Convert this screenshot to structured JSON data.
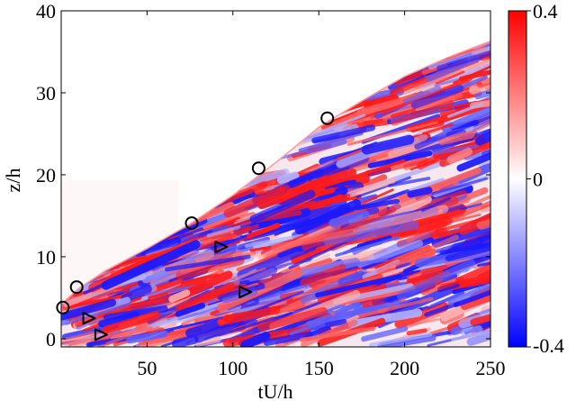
{
  "chart_data": {
    "type": "heatmap",
    "title": "",
    "xlabel": "tU/h",
    "ylabel": "z/h",
    "xlim": [
      0,
      250
    ],
    "ylim": [
      -1,
      40
    ],
    "xticks": [
      50,
      100,
      150,
      200,
      250
    ],
    "xtick_labels": [
      "50",
      "100",
      "150",
      "200",
      "250"
    ],
    "yticks": [
      0,
      10,
      20,
      30,
      40
    ],
    "ytick_labels": [
      "0",
      "10",
      "20",
      "30",
      "40"
    ],
    "colorbar": {
      "range": [
        -0.4,
        0.4
      ],
      "ticks": [
        0.4,
        0,
        -0.4
      ],
      "tick_labels": [
        "0.4",
        "0",
        "-0.4"
      ],
      "colors": [
        "#0000ff",
        "#ffffff",
        "#ff0000"
      ]
    },
    "boundary_curve": {
      "t": [
        0,
        10,
        25,
        50,
        75,
        100,
        125,
        150,
        175,
        200,
        225,
        250
      ],
      "z": [
        4.2,
        6.1,
        8.2,
        11.0,
        14.0,
        17.5,
        21.5,
        25.8,
        29.0,
        32.0,
        34.3,
        36.3
      ]
    },
    "circle_markers": [
      {
        "t": 1,
        "z": 3.8
      },
      {
        "t": 9,
        "z": 6.3
      },
      {
        "t": 76,
        "z": 14.1
      },
      {
        "t": 115,
        "z": 20.8
      },
      {
        "t": 155,
        "z": 26.9
      }
    ],
    "triangle_markers": [
      {
        "t": 16,
        "z": 2.5
      },
      {
        "t": 23,
        "z": 0.5
      },
      {
        "t": 93,
        "z": 11.2
      },
      {
        "t": 107,
        "z": 5.7
      }
    ]
  }
}
